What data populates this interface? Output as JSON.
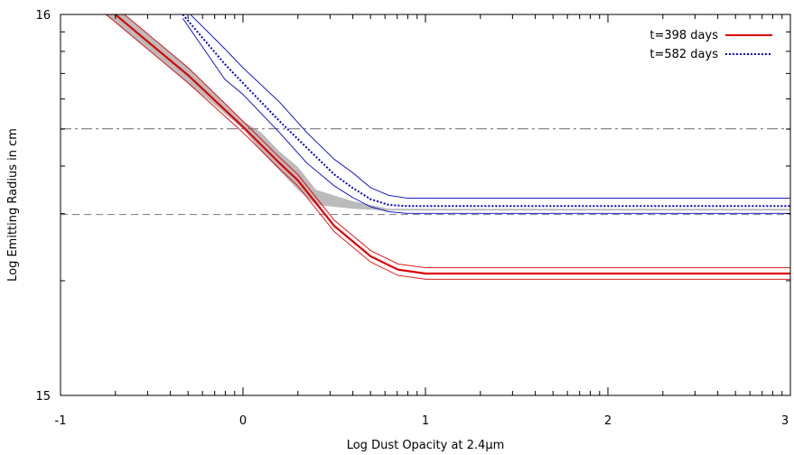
{
  "chart_data": {
    "type": "line",
    "xlabel": "Log Dust Opacity at 2.4µm",
    "ylabel": "Log Emitting Radius in cm",
    "xlim": [
      -1,
      3
    ],
    "ylim": [
      15,
      16
    ],
    "x_ticks": [
      "-1",
      "0",
      "1",
      "2",
      "3"
    ],
    "y_ticks": [
      "15",
      "16"
    ],
    "grid": false,
    "legend_position": "top-right",
    "reference_lines": [
      {
        "style": "dash-dot",
        "color": "#888888",
        "y": 15.7
      },
      {
        "style": "dashed",
        "color": "#888888",
        "y": 15.475
      }
    ],
    "shaded_band": {
      "color": "#bbbbbb",
      "x": [
        -1.0,
        -0.7,
        -0.3,
        0.0,
        0.1,
        0.2,
        0.3,
        0.4,
        0.6,
        0.8,
        1.0,
        3.0
      ],
      "lower": [
        16.08,
        15.98,
        15.82,
        15.7,
        15.64,
        15.59,
        15.54,
        15.5,
        15.49,
        15.485,
        15.485,
        15.485
      ],
      "upper": [
        16.12,
        16.02,
        15.86,
        15.72,
        15.69,
        15.64,
        15.6,
        15.54,
        15.51,
        15.49,
        15.49,
        15.49
      ]
    },
    "series": [
      {
        "name": "t=398 days",
        "color": "#dd0000",
        "dash": "solid",
        "x": [
          -1.0,
          -0.7,
          -0.5,
          -0.3,
          0.0,
          0.2,
          0.3,
          0.5,
          0.7,
          0.85,
          1.0,
          1.5,
          2.0,
          2.5,
          3.0
        ],
        "y": [
          16.12,
          16.0,
          15.92,
          15.84,
          15.705,
          15.61,
          15.565,
          15.445,
          15.365,
          15.33,
          15.32,
          15.32,
          15.32,
          15.32,
          15.32
        ],
        "lower": [
          16.1,
          15.98,
          15.9,
          15.82,
          15.69,
          15.595,
          15.55,
          15.43,
          15.35,
          15.315,
          15.305,
          15.305,
          15.305,
          15.305,
          15.305
        ],
        "upper": [
          16.14,
          16.02,
          15.94,
          15.86,
          15.72,
          15.625,
          15.58,
          15.46,
          15.38,
          15.345,
          15.335,
          15.335,
          15.335,
          15.335,
          15.335
        ]
      },
      {
        "name": "t=582 days",
        "color": "#0000cc",
        "dash": "dotted",
        "x": [
          -0.33,
          -0.1,
          0.0,
          0.2,
          0.35,
          0.5,
          0.6,
          0.7,
          0.8,
          0.9,
          1.0,
          1.5,
          2.0,
          2.5,
          3.0
        ],
        "y": [
          16.0,
          15.87,
          15.82,
          15.72,
          15.65,
          15.58,
          15.545,
          15.515,
          15.5,
          15.497,
          15.497,
          15.497,
          15.497,
          15.497,
          15.497
        ],
        "lower": [
          15.99,
          15.83,
          15.79,
          15.69,
          15.61,
          15.55,
          15.52,
          15.495,
          15.482,
          15.478,
          15.478,
          15.478,
          15.478,
          15.478,
          15.478
        ],
        "upper": [
          16.02,
          15.91,
          15.86,
          15.77,
          15.69,
          15.62,
          15.585,
          15.545,
          15.525,
          15.518,
          15.518,
          15.518,
          15.518,
          15.518,
          15.518
        ]
      }
    ]
  }
}
